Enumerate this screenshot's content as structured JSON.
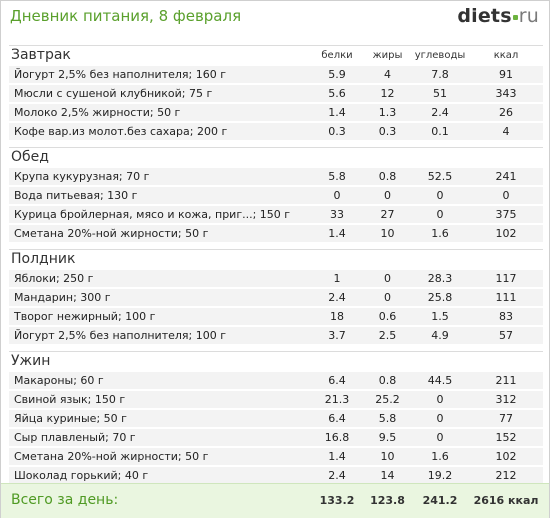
{
  "header": {
    "title": "Дневник питания, 8 февраля",
    "logo_main": "diets",
    "logo_tld": "ru"
  },
  "columns": {
    "protein": "белки",
    "fat": "жиры",
    "carbs": "углеводы",
    "kcal": "ккал"
  },
  "meals": [
    {
      "title": "Завтрак",
      "items": [
        {
          "name": "Йогурт 2,5% без наполнителя; 160 г",
          "protein": "5.9",
          "fat": "4",
          "carbs": "7.8",
          "kcal": "91"
        },
        {
          "name": "Мюсли с сушеной клубникой; 75 г",
          "protein": "5.6",
          "fat": "12",
          "carbs": "51",
          "kcal": "343"
        },
        {
          "name": "Молоко 2,5% жирности; 50 г",
          "protein": "1.4",
          "fat": "1.3",
          "carbs": "2.4",
          "kcal": "26"
        },
        {
          "name": "Кофе вар.из молот.без сахара; 200 г",
          "protein": "0.3",
          "fat": "0.3",
          "carbs": "0.1",
          "kcal": "4"
        }
      ]
    },
    {
      "title": "Обед",
      "items": [
        {
          "name": "Крупа кукурузная; 70 г",
          "protein": "5.8",
          "fat": "0.8",
          "carbs": "52.5",
          "kcal": "241"
        },
        {
          "name": "Вода питьевая; 130 г",
          "protein": "0",
          "fat": "0",
          "carbs": "0",
          "kcal": "0"
        },
        {
          "name": "Курица бройлерная, мясо и кожа, приг...; 150 г",
          "protein": "33",
          "fat": "27",
          "carbs": "0",
          "kcal": "375"
        },
        {
          "name": "Сметана 20%-ной жирности; 50 г",
          "protein": "1.4",
          "fat": "10",
          "carbs": "1.6",
          "kcal": "102"
        }
      ]
    },
    {
      "title": "Полдник",
      "items": [
        {
          "name": "Яблоки; 250 г",
          "protein": "1",
          "fat": "0",
          "carbs": "28.3",
          "kcal": "117"
        },
        {
          "name": "Мандарин; 300 г",
          "protein": "2.4",
          "fat": "0",
          "carbs": "25.8",
          "kcal": "111"
        },
        {
          "name": "Творог нежирный; 100 г",
          "protein": "18",
          "fat": "0.6",
          "carbs": "1.5",
          "kcal": "83"
        },
        {
          "name": "Йогурт 2,5% без наполнителя; 100 г",
          "protein": "3.7",
          "fat": "2.5",
          "carbs": "4.9",
          "kcal": "57"
        }
      ]
    },
    {
      "title": "Ужин",
      "items": [
        {
          "name": "Макароны; 60 г",
          "protein": "6.4",
          "fat": "0.8",
          "carbs": "44.5",
          "kcal": "211"
        },
        {
          "name": "Свиной язык; 150 г",
          "protein": "21.3",
          "fat": "25.2",
          "carbs": "0",
          "kcal": "312"
        },
        {
          "name": "Яйца куриные; 50 г",
          "protein": "6.4",
          "fat": "5.8",
          "carbs": "0",
          "kcal": "77"
        },
        {
          "name": "Сыр плавленый; 70 г",
          "protein": "16.8",
          "fat": "9.5",
          "carbs": "0",
          "kcal": "152"
        },
        {
          "name": "Сметана 20%-ной жирности; 50 г",
          "protein": "1.4",
          "fat": "10",
          "carbs": "1.6",
          "kcal": "102"
        },
        {
          "name": "Шоколад горький; 40 г",
          "protein": "2.4",
          "fat": "14",
          "carbs": "19.2",
          "kcal": "212"
        }
      ]
    }
  ],
  "total": {
    "label": "Всего за день:",
    "protein": "133.2",
    "fat": "123.8",
    "carbs": "241.2",
    "kcal": "2616 ккал"
  }
}
